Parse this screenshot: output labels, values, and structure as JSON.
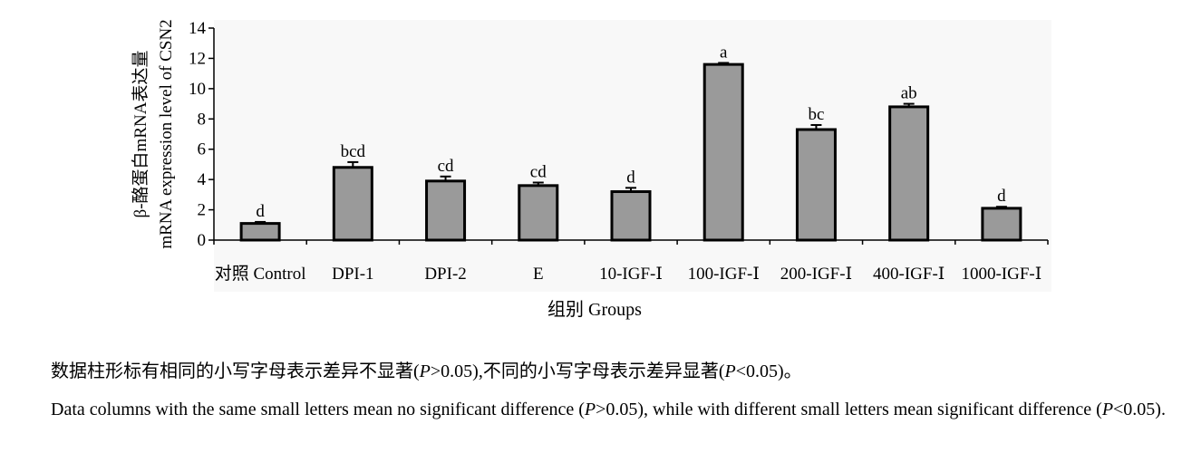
{
  "chart_data": {
    "type": "bar",
    "categories": [
      "对照 Control",
      "DPI-1",
      "DPI-2",
      "E",
      "10-IGF-Ⅰ",
      "100-IGF-Ⅰ",
      "200-IGF-Ⅰ",
      "400-IGF-Ⅰ",
      "1000-IGF-Ⅰ"
    ],
    "values": [
      1.1,
      4.8,
      3.9,
      3.6,
      3.2,
      11.6,
      7.3,
      8.8,
      2.1
    ],
    "errors": [
      0.1,
      0.35,
      0.3,
      0.2,
      0.25,
      0.1,
      0.3,
      0.2,
      0.1
    ],
    "significance_labels": [
      "d",
      "bcd",
      "cd",
      "cd",
      "d",
      "a",
      "bc",
      "ab",
      "d"
    ],
    "yticks": [
      0,
      2,
      4,
      6,
      8,
      10,
      12,
      14
    ],
    "ylim": [
      0,
      14
    ],
    "xlabel": "组别 Groups",
    "ylabel_line1": "β-酪蛋白mRNA表达量",
    "ylabel_line2": "mRNA expression level of CSN2",
    "bar_color": "#9a9a9a",
    "grid": false,
    "legend": false
  },
  "notes": {
    "cn_part1": "数据柱形标有相同的小写字母表示差异不显著(",
    "cn_p1": "P",
    "cn_part2": ">0.05),不同的小写字母表示差异显著(",
    "cn_p2": "P",
    "cn_part3": "<0.05)。",
    "en_part1": "Data columns with the same small letters mean no significant difference (",
    "en_p1": "P",
    "en_part2": ">0.05), while with different small letters mean significant difference (",
    "en_p2": "P",
    "en_part3": "<0.05)."
  }
}
